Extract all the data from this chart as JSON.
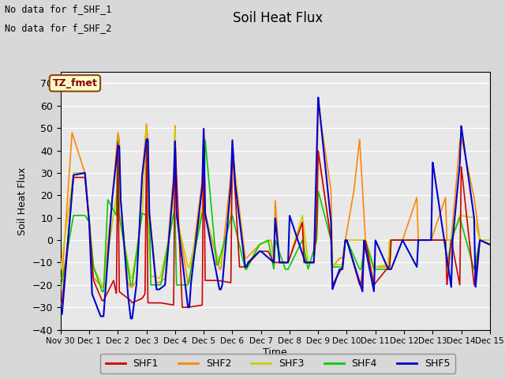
{
  "title": "Soil Heat Flux",
  "ylabel": "Soil Heat Flux",
  "xlabel": "Time",
  "ylim": [
    -40,
    75
  ],
  "yticks": [
    -40,
    -30,
    -20,
    -10,
    0,
    10,
    20,
    30,
    40,
    50,
    60,
    70
  ],
  "bg_color": "#d8d8d8",
  "plot_bg_color": "#e8e8e8",
  "grid_color": "white",
  "annotation_text1": "No data for f_SHF_1",
  "annotation_text2": "No data for f_SHF_2",
  "tz_label": "TZ_fmet",
  "colors": {
    "SHF1": "#cc0000",
    "SHF2": "#ff8800",
    "SHF3": "#cccc00",
    "SHF4": "#00cc00",
    "SHF5": "#0000cc"
  },
  "xtick_labels": [
    "Nov 30",
    "Dec 1",
    "Dec 2",
    "Dec 3",
    "Dec 4",
    "Dec 5",
    "Dec 6",
    "Dec 7",
    "Dec 8",
    "Dec 9",
    "Dec 10",
    "Dec 11",
    "Dec 12",
    "Dec 13",
    "Dec 14",
    "Dec 15"
  ]
}
